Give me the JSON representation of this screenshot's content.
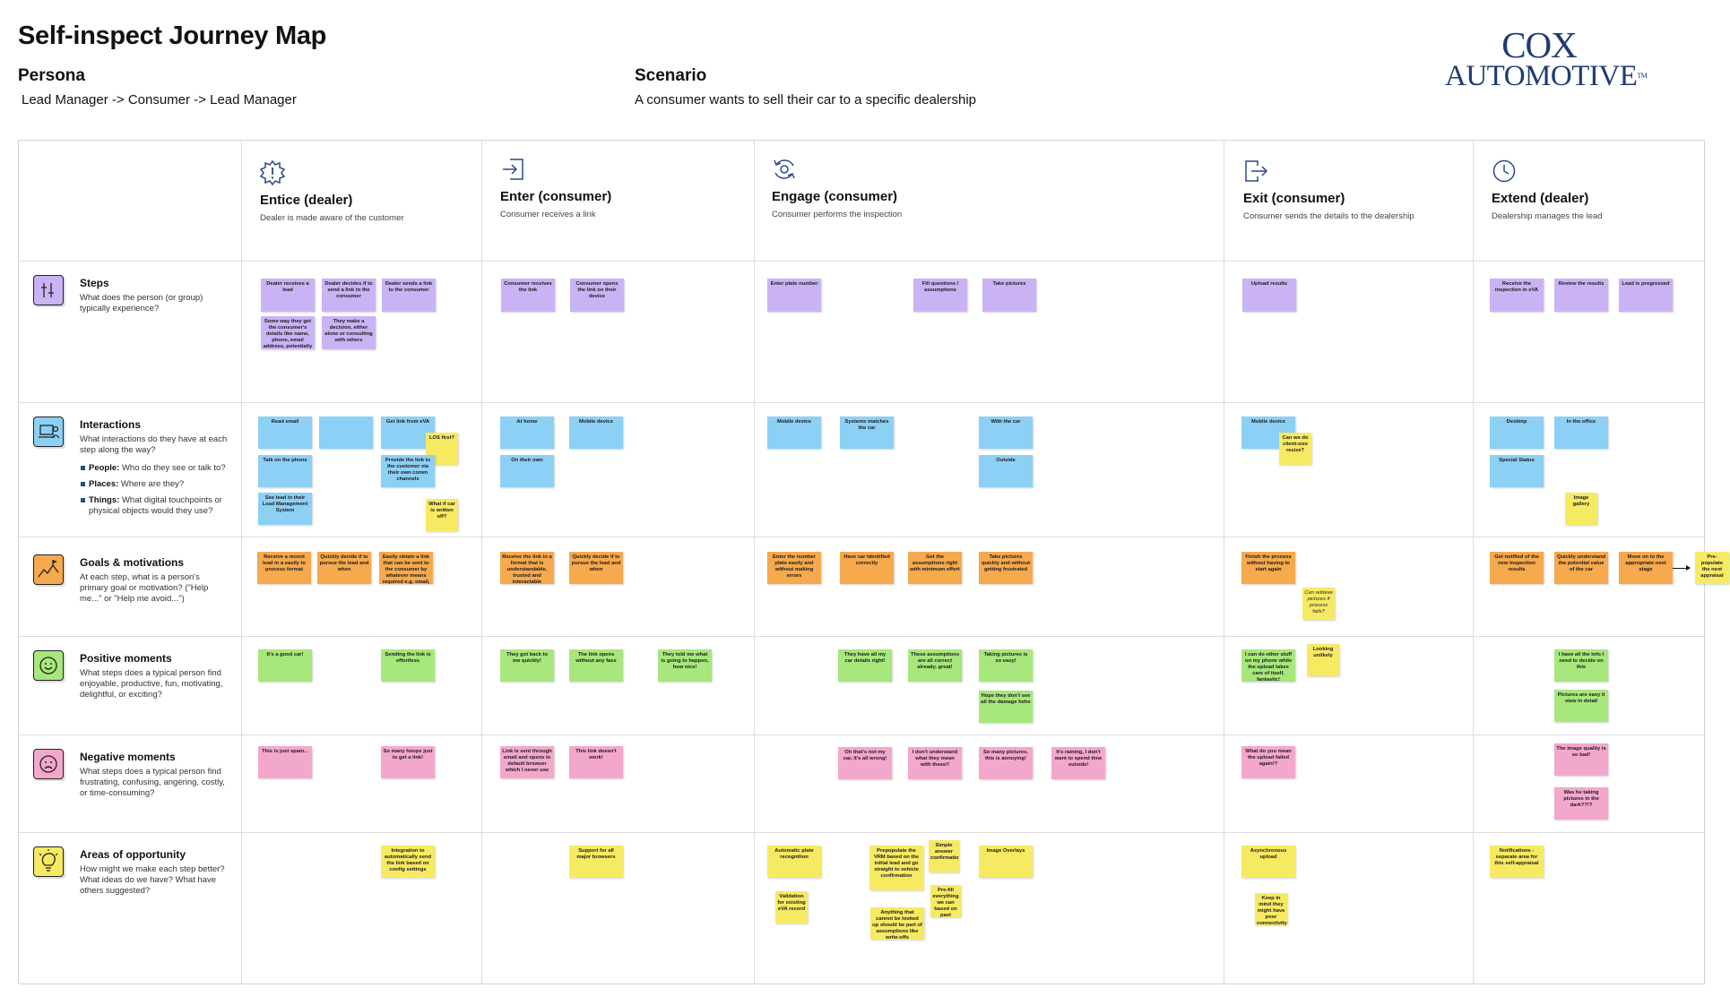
{
  "title": "Self-inspect Journey Map",
  "persona": {
    "heading": "Persona",
    "value": "Lead Manager -> Consumer -> Lead Manager"
  },
  "scenario": {
    "heading": "Scenario",
    "value": "A consumer wants to sell their car to a specific dealership"
  },
  "logo": {
    "line1": "COX",
    "line2": "AUTOMOTIVE",
    "tm": "TM"
  },
  "colors": {
    "purple": "#c9b3f5",
    "blue": "#8dd0f5",
    "orange": "#f6a94d",
    "green": "#a7e77c",
    "pink": "#f4a7cc",
    "yellow": "#f7ea63",
    "icon_line": "#2b4a8a"
  },
  "stages": [
    {
      "icon": "burst-alert-icon",
      "name": "Entice (dealer)",
      "desc": "Dealer is made aware of the customer"
    },
    {
      "icon": "enter-arrow-icon",
      "name": "Enter (consumer)",
      "desc": "Consumer receives a link"
    },
    {
      "icon": "cycle-gear-icon",
      "name": "Engage (consumer)",
      "desc": "Consumer performs the inspection"
    },
    {
      "icon": "exit-arrow-icon",
      "name": "Exit (consumer)",
      "desc": "Consumer sends the details to the dealership"
    },
    {
      "icon": "clock-icon",
      "name": "Extend (dealer)",
      "desc": "Dealership manages the lead"
    }
  ],
  "lanes": [
    {
      "icon": "steps-icon",
      "color": "#c9b3f5",
      "name": "Steps",
      "desc": "What does the person (or group) typically experience?",
      "bullets": []
    },
    {
      "icon": "interactions-icon",
      "color": "#8dd0f5",
      "name": "Interactions",
      "desc": "What interactions do they have at each step along the way?",
      "bullets": [
        {
          "k": "People:",
          "v": " Who do they see or talk to?"
        },
        {
          "k": "Places:",
          "v": " Where are they?"
        },
        {
          "k": "Things:",
          "v": " What digital touchpoints or physical objects would they use?"
        }
      ]
    },
    {
      "icon": "goals-icon",
      "color": "#f6a94d",
      "name": "Goals & motivations",
      "desc": "At each step, what is a person's primary goal or motivation? (\"Help me...\" or \"Help me avoid...\")",
      "bullets": []
    },
    {
      "icon": "happy-face-icon",
      "color": "#a7e77c",
      "name": "Positive moments",
      "desc": "What steps does a typical person find enjoyable, productive, fun, motivating, delightful, or exciting?",
      "bullets": []
    },
    {
      "icon": "sad-face-icon",
      "color": "#f4a7cc",
      "name": "Negative moments",
      "desc": "What steps does a typical person find frustrating, confusing, angering, costly, or time-consuming?",
      "bullets": []
    },
    {
      "icon": "lightbulb-icon",
      "color": "#f7ea63",
      "name": "Areas of opportunity",
      "desc": "How might we make each step better? What ideas do we have? What have others suggested?",
      "bullets": []
    }
  ],
  "notes": [
    {
      "c": "purple",
      "t": "Dealer receives a lead"
    },
    {
      "c": "purple",
      "t": "Dealer decides if to send a link to the consumer"
    },
    {
      "c": "purple",
      "t": "Dealer sends a link to the consumer"
    },
    {
      "c": "purple",
      "t": "Some way they get the consumer's details like name, phone, email address, potentially car model"
    },
    {
      "c": "purple",
      "t": "They make a decision, either alone or consulting with others"
    },
    {
      "c": "purple",
      "t": "Consumer receives the link"
    },
    {
      "c": "purple",
      "t": "Consumer opens the link on their device"
    },
    {
      "c": "purple",
      "t": "Enter plate number"
    },
    {
      "c": "purple",
      "t": "Fill questions / assumptions"
    },
    {
      "c": "purple",
      "t": "Take pictures"
    },
    {
      "c": "purple",
      "t": "Upload results"
    },
    {
      "c": "purple",
      "t": "Receive the inspection in eVA"
    },
    {
      "c": "purple",
      "t": "Review the results"
    },
    {
      "c": "purple",
      "t": "Lead is progressed"
    },
    {
      "c": "blue",
      "t": "Read email"
    },
    {
      "c": "blue",
      "t": ""
    },
    {
      "c": "blue",
      "t": "Get link from eVA"
    },
    {
      "c": "yellow",
      "t": "LOS first?"
    },
    {
      "c": "blue",
      "t": "Talk on the phone"
    },
    {
      "c": "blue",
      "t": "Provide the link to the customer via their own comm channels"
    },
    {
      "c": "blue",
      "t": "See lead in their Lead Management System"
    },
    {
      "c": "yellow",
      "t": "What if car is written off?"
    },
    {
      "c": "blue",
      "t": "At home"
    },
    {
      "c": "blue",
      "t": "Mobile device"
    },
    {
      "c": "blue",
      "t": "On their own"
    },
    {
      "c": "blue",
      "t": "Mobile device"
    },
    {
      "c": "blue",
      "t": "Systems matches the car"
    },
    {
      "c": "blue",
      "t": "With the car"
    },
    {
      "c": "blue",
      "t": "Outside"
    },
    {
      "c": "blue",
      "t": "Mobile device"
    },
    {
      "c": "yellow",
      "t": "Can we do client-size resize?"
    },
    {
      "c": "blue",
      "t": "Desktop"
    },
    {
      "c": "blue",
      "t": "In the office"
    },
    {
      "c": "blue",
      "t": "Special Status"
    },
    {
      "c": "yellow",
      "t": "Image gallery"
    },
    {
      "c": "orange",
      "t": "Receive a recent lead in a easily to process format"
    },
    {
      "c": "orange",
      "t": "Quickly decide if to pursue the lead and when"
    },
    {
      "c": "orange",
      "t": "Easily obtain a link that can be sent to the consumer by whatever means required e.g. email, WhatsApp etc"
    },
    {
      "c": "orange",
      "t": "Receive the link in a format that is understandable, trusted and interactable"
    },
    {
      "c": "orange",
      "t": "Quickly decide if to pursue the lead and when"
    },
    {
      "c": "orange",
      "t": "Enter the number plate easily and without making errors"
    },
    {
      "c": "orange",
      "t": "Have car identified correctly"
    },
    {
      "c": "orange",
      "t": "Get the assumptions right with minimum effort"
    },
    {
      "c": "orange",
      "t": "Take pictures quickly and without getting frustrated"
    },
    {
      "c": "orange",
      "t": "Finish the process without having to start again"
    },
    {
      "c": "yellow",
      "t": "Can retrieve pictures if process fails?",
      "it": true
    },
    {
      "c": "orange",
      "t": "Get notified of the new inspection results"
    },
    {
      "c": "orange",
      "t": "Quickly understand the potential value of the car"
    },
    {
      "c": "orange",
      "t": "Move on to the appropriate next stage"
    },
    {
      "c": "yellow",
      "t": "Pre-populate the next appraisal"
    },
    {
      "c": "green",
      "t": "It's a good car!"
    },
    {
      "c": "green",
      "t": "Sending the link is effortless"
    },
    {
      "c": "green",
      "t": "They got back to me quickly!"
    },
    {
      "c": "green",
      "t": "The link opens without any fass"
    },
    {
      "c": "green",
      "t": "They told me what is going to happen, how nice!"
    },
    {
      "c": "green",
      "t": "They have all my car details right!"
    },
    {
      "c": "green",
      "t": "These assumptions are all correct already, great!"
    },
    {
      "c": "green",
      "t": "Taking pictures is so easy!"
    },
    {
      "c": "green",
      "t": "Hope they don't see all the damage hehe"
    },
    {
      "c": "green",
      "t": "I can do other stuff on my phone while the upload takes care of itself, fantastic!"
    },
    {
      "c": "yellow",
      "t": "Looking unlikely"
    },
    {
      "c": "green",
      "t": "I have all the info I need to decide on this"
    },
    {
      "c": "green",
      "t": "Pictures are easy it view in detail"
    },
    {
      "c": "pink",
      "t": "This is just spam..."
    },
    {
      "c": "pink",
      "t": "So many hoops just to get a link!"
    },
    {
      "c": "pink",
      "t": "Link is sent through email and opens in default browser which I never use"
    },
    {
      "c": "pink",
      "t": "This link doesn't work!"
    },
    {
      "c": "pink",
      "t": "Oh that's not my car, it's all wrong!"
    },
    {
      "c": "pink",
      "t": "I don't understand what they mean with these!!"
    },
    {
      "c": "pink",
      "t": "So many pictures, this is annoying!"
    },
    {
      "c": "pink",
      "t": "It's raining, I don't want to spend time outside!"
    },
    {
      "c": "pink",
      "t": "What do you mean the upload failed again!?"
    },
    {
      "c": "pink",
      "t": "The image quality is so bad!"
    },
    {
      "c": "pink",
      "t": "Was he taking pictures in the dark??!?"
    },
    {
      "c": "yellow",
      "t": "Integration to automatically send the link based on config settings"
    },
    {
      "c": "yellow",
      "t": "Support for all major browsers"
    },
    {
      "c": "yellow",
      "t": "Automatic plate recognition"
    },
    {
      "c": "yellow",
      "t": "Prepopulate the VRM based on the initial lead and go straight to vehicle confirmation"
    },
    {
      "c": "yellow",
      "t": "Simple answer confirmation"
    },
    {
      "c": "yellow",
      "t": "Image Overlays"
    },
    {
      "c": "yellow",
      "t": "Validation for existing eVA record"
    },
    {
      "c": "yellow",
      "t": "Pre-fill everything we can based on past appraisals"
    },
    {
      "c": "yellow",
      "t": "Anything that cannot be looked up should be part of assumptions like write-offs"
    },
    {
      "c": "yellow",
      "t": "Asynchronous upload"
    },
    {
      "c": "yellow",
      "t": "Keep in mind they might have poor connectivity"
    },
    {
      "c": "yellow",
      "t": "Notifications - separate area for this self-appraisal"
    }
  ]
}
